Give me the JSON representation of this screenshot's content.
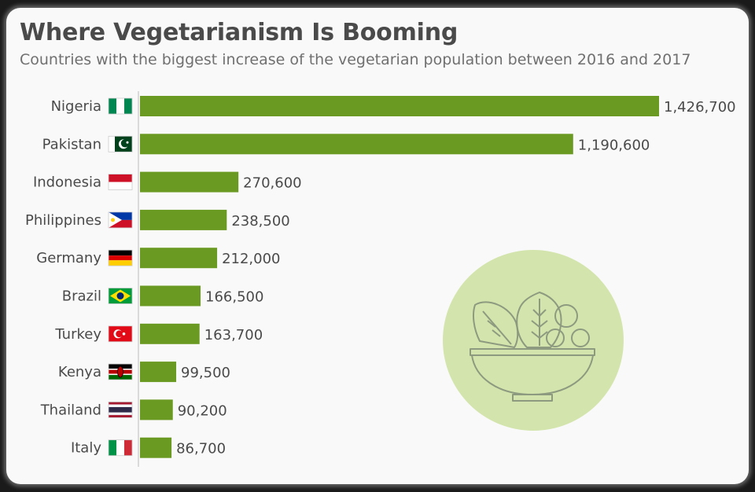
{
  "chart_data": {
    "type": "bar",
    "orientation": "horizontal",
    "title": "Where Vegetarianism Is Booming",
    "subtitle": "Countries with the biggest increase of the vegetarian population between 2016 and 2017",
    "categories": [
      "Nigeria",
      "Pakistan",
      "Indonesia",
      "Philippines",
      "Germany",
      "Brazil",
      "Turkey",
      "Kenya",
      "Thailand",
      "Italy"
    ],
    "values": [
      1426700,
      1190600,
      270600,
      238500,
      212000,
      166500,
      163700,
      99500,
      90200,
      86700
    ],
    "value_labels": [
      "1,426,700",
      "1,190,600",
      "270,600",
      "238,500",
      "212,000",
      "166,500",
      "163,700",
      "99,500",
      "90,200",
      "86,700"
    ],
    "flag_icons": [
      "nigeria-flag-icon",
      "pakistan-flag-icon",
      "indonesia-flag-icon",
      "philippines-flag-icon",
      "germany-flag-icon",
      "brazil-flag-icon",
      "turkey-flag-icon",
      "kenya-flag-icon",
      "thailand-flag-icon",
      "italy-flag-icon"
    ],
    "xlim": [
      0,
      1426700
    ],
    "grid": false,
    "bar_color": "#6b9a22",
    "decoration_icon": "salad-bowl-icon",
    "decoration_color": "#d3e5ac"
  }
}
